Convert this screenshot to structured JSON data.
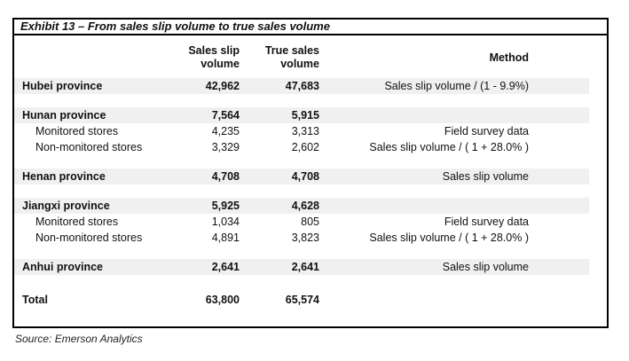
{
  "exhibit": {
    "title": "Exhibit 13 – From sales slip volume to true sales volume"
  },
  "colors": {
    "band": "#f0f0f0",
    "border": "#000000",
    "text": "#111111"
  },
  "table": {
    "headers": {
      "name": "",
      "slip": "Sales slip volume",
      "true_sales": "True sales volume",
      "method": "Method"
    },
    "rows": [
      {
        "type": "province",
        "name": "Hubei province",
        "slip": "42,962",
        "true_sales": "47,683",
        "method": "Sales slip volume / (1 - 9.9%)"
      },
      {
        "type": "spacer"
      },
      {
        "type": "province",
        "name": "Hunan province",
        "slip": "7,564",
        "true_sales": "5,915",
        "method": ""
      },
      {
        "type": "sub",
        "name": "Monitored stores",
        "slip": "4,235",
        "true_sales": "3,313",
        "method": "Field survey data"
      },
      {
        "type": "sub",
        "name": "Non-monitored stores",
        "slip": "3,329",
        "true_sales": "2,602",
        "method": "Sales slip volume / ( 1 + 28.0% )"
      },
      {
        "type": "spacer"
      },
      {
        "type": "province",
        "name": "Henan province",
        "slip": "4,708",
        "true_sales": "4,708",
        "method": "Sales slip volume"
      },
      {
        "type": "spacer"
      },
      {
        "type": "province",
        "name": "Jiangxi province",
        "slip": "5,925",
        "true_sales": "4,628",
        "method": ""
      },
      {
        "type": "sub",
        "name": "Monitored stores",
        "slip": "1,034",
        "true_sales": "805",
        "method": "Field survey data"
      },
      {
        "type": "sub",
        "name": "Non-monitored stores",
        "slip": "4,891",
        "true_sales": "3,823",
        "method": "Sales slip volume / ( 1 + 28.0% )"
      },
      {
        "type": "spacer"
      },
      {
        "type": "province",
        "name": "Anhui province",
        "slip": "2,641",
        "true_sales": "2,641",
        "method": "Sales slip volume"
      },
      {
        "type": "spacer"
      },
      {
        "type": "total",
        "name": "Total",
        "slip": "63,800",
        "true_sales": "65,574",
        "method": ""
      }
    ]
  },
  "source": "Source: Emerson Analytics"
}
